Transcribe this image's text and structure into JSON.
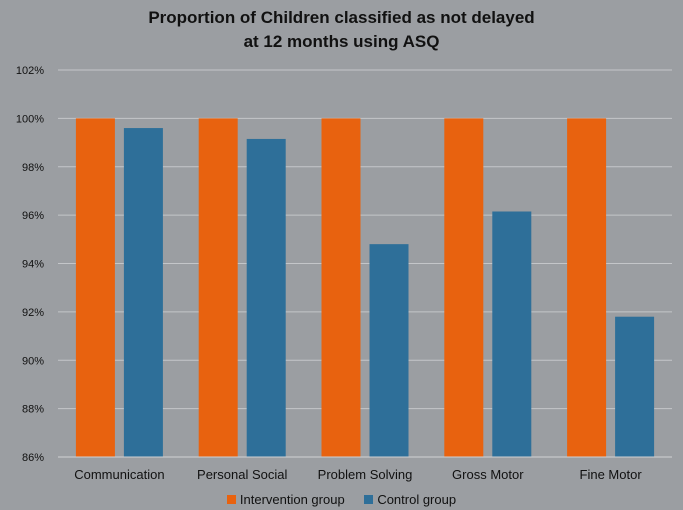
{
  "chart_data": {
    "type": "bar",
    "title_lines": [
      "Proportion of Children classified as not delayed",
      "at 12 months using ASQ"
    ],
    "categories": [
      "Communication",
      "Personal Social",
      "Problem Solving",
      "Gross Motor",
      "Fine Motor"
    ],
    "series": [
      {
        "name": "Intervention group",
        "color": "#e8620f",
        "values": [
          100,
          100,
          100,
          100,
          100
        ]
      },
      {
        "name": "Control group",
        "color": "#2e6f99",
        "values": [
          99.6,
          99.15,
          94.8,
          96.15,
          91.8
        ]
      }
    ],
    "ylim": [
      86,
      102
    ],
    "yticks": [
      "86%",
      "88%",
      "90%",
      "92%",
      "94%",
      "96%",
      "98%",
      "100%",
      "102%"
    ],
    "ytick_values": [
      86,
      88,
      90,
      92,
      94,
      96,
      98,
      100,
      102
    ],
    "grid": true,
    "legend_position": "bottom"
  }
}
